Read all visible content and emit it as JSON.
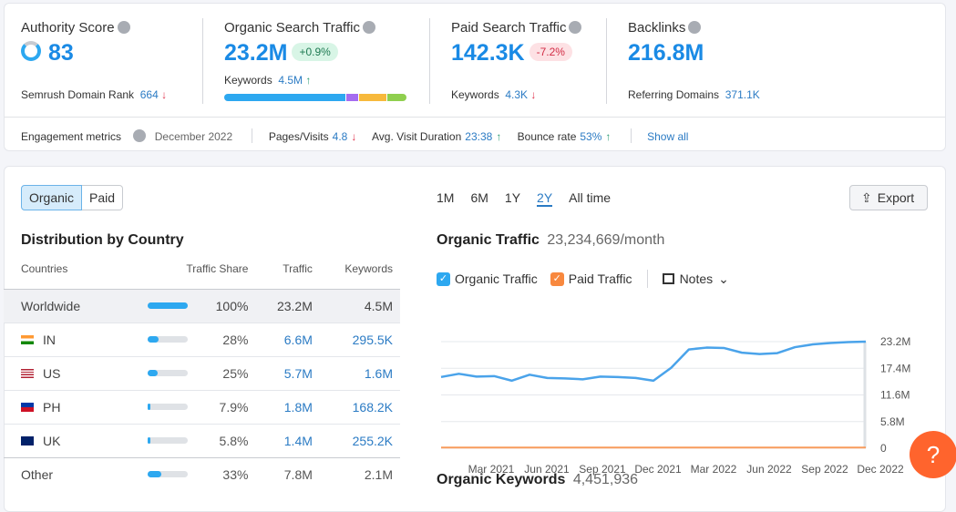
{
  "authority": {
    "label": "Authority Score",
    "value": "83",
    "rank_label": "Semrush Domain Rank",
    "rank_value": "664",
    "rank_arrow": "↓"
  },
  "organic": {
    "label": "Organic Search Traffic",
    "value": "23.2M",
    "change": "+0.9%",
    "kw_label": "Keywords",
    "kw_value": "4.5M",
    "kw_arrow": "↑"
  },
  "paid": {
    "label": "Paid Search Traffic",
    "value": "142.3K",
    "change": "-7.2%",
    "kw_label": "Keywords",
    "kw_value": "4.3K",
    "kw_arrow": "↓"
  },
  "backlinks": {
    "label": "Backlinks",
    "value": "216.8M",
    "ref_label": "Referring Domains",
    "ref_value": "371.1K"
  },
  "engagement": {
    "label": "Engagement metrics",
    "date": "December 2022",
    "pages_label": "Pages/Visits",
    "pages_value": "4.8",
    "pages_arrow": "↓",
    "dur_label": "Avg. Visit Duration",
    "dur_value": "23:38",
    "dur_arrow": "↑",
    "bounce_label": "Bounce rate",
    "bounce_value": "53%",
    "bounce_arrow": "↑",
    "show_all": "Show all"
  },
  "toggle": {
    "organic": "Organic",
    "paid": "Paid"
  },
  "distribution": {
    "title": "Distribution by Country",
    "columns": [
      "Countries",
      "Traffic Share",
      "Traffic",
      "Keywords"
    ],
    "rows": [
      {
        "country": "Worldwide",
        "share": "100%",
        "share_frac": 1.0,
        "traffic": "23.2M",
        "keywords": "4.5M"
      },
      {
        "country": "IN",
        "share": "28%",
        "share_frac": 0.28,
        "traffic": "6.6M",
        "keywords": "295.5K"
      },
      {
        "country": "US",
        "share": "25%",
        "share_frac": 0.25,
        "traffic": "5.7M",
        "keywords": "1.6M"
      },
      {
        "country": "PH",
        "share": "7.9%",
        "share_frac": 0.079,
        "traffic": "1.8M",
        "keywords": "168.2K"
      },
      {
        "country": "UK",
        "share": "5.8%",
        "share_frac": 0.058,
        "traffic": "1.4M",
        "keywords": "255.2K"
      },
      {
        "country": "Other",
        "share": "33%",
        "share_frac": 0.33,
        "traffic": "7.8M",
        "keywords": "2.1M"
      }
    ]
  },
  "periods": [
    "1M",
    "6M",
    "1Y",
    "2Y",
    "All time"
  ],
  "active_period": "2Y",
  "export": "Export",
  "traffic_chart": {
    "title": "Organic Traffic",
    "value": "23,234,669/month",
    "legend": [
      "Organic Traffic",
      "Paid Traffic"
    ],
    "notes": "Notes"
  },
  "chart_data": {
    "type": "line",
    "ylim": [
      0,
      23.2
    ],
    "yticks": [
      "0",
      "5.8M",
      "11.6M",
      "17.4M",
      "23.2M"
    ],
    "xticks": [
      "Mar 2021",
      "Jun 2021",
      "Sep 2021",
      "Dec 2021",
      "Mar 2022",
      "Jun 2022",
      "Sep 2022",
      "Dec 2022"
    ],
    "x": [
      "Dec 2020",
      "Jan 2021",
      "Feb 2021",
      "Mar 2021",
      "Apr 2021",
      "May 2021",
      "Jun 2021",
      "Jul 2021",
      "Aug 2021",
      "Sep 2021",
      "Oct 2021",
      "Nov 2021",
      "Dec 2021",
      "Jan 2022",
      "Feb 2022",
      "Mar 2022",
      "Apr 2022",
      "May 2022",
      "Jun 2022",
      "Jul 2022",
      "Aug 2022",
      "Sep 2022",
      "Oct 2022",
      "Nov 2022",
      "Dec 2022"
    ],
    "series": [
      {
        "name": "Organic Traffic",
        "color": "#4aa3ea",
        "values": [
          15.5,
          16.2,
          15.6,
          15.7,
          14.7,
          16.0,
          15.3,
          15.2,
          15.0,
          15.6,
          15.5,
          15.3,
          14.7,
          17.5,
          21.5,
          21.9,
          21.8,
          20.8,
          20.5,
          20.7,
          22.0,
          22.6,
          22.9,
          23.1,
          23.2
        ]
      },
      {
        "name": "Paid Traffic",
        "color": "#f89b5c",
        "values": [
          0.14,
          0.14,
          0.14,
          0.14,
          0.14,
          0.14,
          0.14,
          0.14,
          0.14,
          0.14,
          0.14,
          0.14,
          0.14,
          0.14,
          0.14,
          0.14,
          0.14,
          0.14,
          0.14,
          0.14,
          0.14,
          0.14,
          0.14,
          0.14,
          0.14
        ]
      }
    ]
  },
  "keywords_section": {
    "title": "Organic Keywords",
    "value": "4,451,936"
  },
  "help": "?"
}
